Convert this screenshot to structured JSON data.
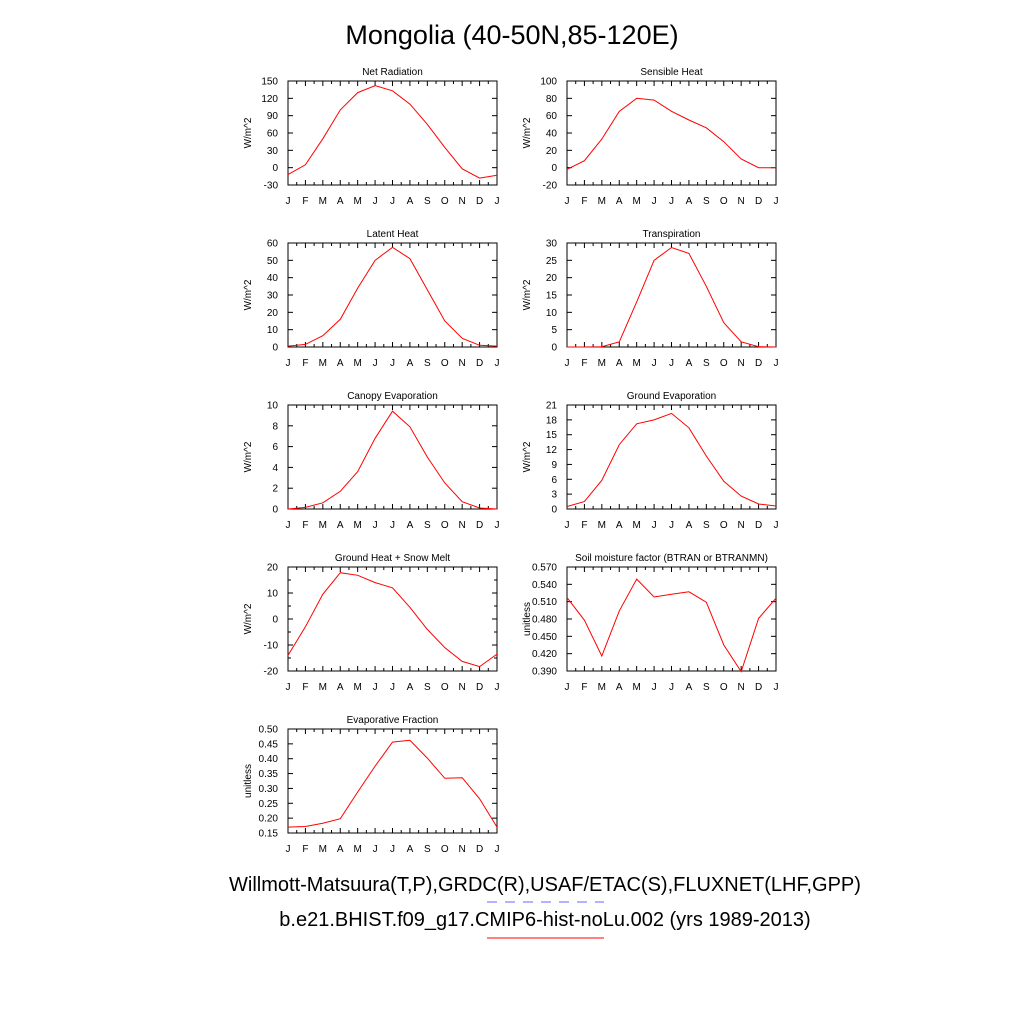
{
  "page_title": "Mongolia (40-50N,85-120E)",
  "legend": {
    "line1": "Willmott-Matsuura(T,P),GRDC(R),USAF/ETAC(S),FLUXNET(LHF,GPP)",
    "line2": "b.e21.BHIST.f09_g17.CMIP6-hist-noLu.002 (yrs 1989-2013)",
    "line1_color": "#6666ff",
    "line2_color": "#ff0000"
  },
  "colors": {
    "series": "#ff0000",
    "axis": "#000000",
    "background": "#ffffff"
  },
  "chart_data": [
    {
      "type": "line",
      "title": "Net Radiation",
      "ylabel": "W/m^2",
      "categories": [
        "J",
        "F",
        "M",
        "A",
        "M",
        "J",
        "J",
        "A",
        "S",
        "O",
        "N",
        "D",
        "J"
      ],
      "values": [
        -12,
        5,
        50,
        100,
        130,
        142,
        133,
        110,
        75,
        35,
        -2,
        -18,
        -13
      ],
      "ylim": [
        -30,
        150
      ],
      "yticks": [
        -30,
        0,
        30,
        60,
        90,
        120,
        150
      ],
      "ytick_labels": [
        "-30",
        "0",
        "30",
        "60",
        "90",
        "120",
        "150"
      ],
      "grid": false
    },
    {
      "type": "line",
      "title": "Sensible Heat",
      "ylabel": "W/m^2",
      "categories": [
        "J",
        "F",
        "M",
        "A",
        "M",
        "J",
        "J",
        "A",
        "S",
        "O",
        "N",
        "D",
        "J"
      ],
      "values": [
        -2,
        8,
        33,
        65,
        80,
        78,
        65,
        55,
        46,
        30,
        10,
        0,
        0
      ],
      "ylim": [
        -20,
        100
      ],
      "yticks": [
        -20,
        0,
        20,
        40,
        60,
        80,
        100
      ],
      "ytick_labels": [
        "-20",
        "0",
        "20",
        "40",
        "60",
        "80",
        "100"
      ],
      "grid": false
    },
    {
      "type": "line",
      "title": "Latent Heat",
      "ylabel": "W/m^2",
      "categories": [
        "J",
        "F",
        "M",
        "A",
        "M",
        "J",
        "J",
        "A",
        "S",
        "O",
        "N",
        "D",
        "J"
      ],
      "values": [
        0.5,
        1.5,
        6.5,
        16,
        34,
        50,
        57.5,
        51,
        33,
        15,
        5,
        1,
        0.5
      ],
      "ylim": [
        0,
        60
      ],
      "yticks": [
        0,
        10,
        20,
        30,
        40,
        50,
        60
      ],
      "ytick_labels": [
        "0",
        "10",
        "20",
        "30",
        "40",
        "50",
        "60"
      ],
      "grid": false
    },
    {
      "type": "line",
      "title": "Transpiration",
      "ylabel": "W/m^2",
      "categories": [
        "J",
        "F",
        "M",
        "A",
        "M",
        "J",
        "J",
        "A",
        "S",
        "O",
        "N",
        "D",
        "J"
      ],
      "values": [
        0,
        0,
        0.1,
        1.5,
        13,
        25,
        28.7,
        27,
        17.5,
        7,
        1.5,
        0.1,
        0
      ],
      "ylim": [
        0,
        30
      ],
      "yticks": [
        0,
        5,
        10,
        15,
        20,
        25,
        30
      ],
      "ytick_labels": [
        "0",
        "5",
        "10",
        "15",
        "20",
        "25",
        "30"
      ],
      "grid": false
    },
    {
      "type": "line",
      "title": "Canopy Evaporation",
      "ylabel": "W/m^2",
      "categories": [
        "J",
        "F",
        "M",
        "A",
        "M",
        "J",
        "J",
        "A",
        "S",
        "O",
        "N",
        "D",
        "J"
      ],
      "values": [
        0,
        0.15,
        0.6,
        1.7,
        3.6,
        6.8,
        9.4,
        7.9,
        5.0,
        2.5,
        0.7,
        0.1,
        0
      ],
      "ylim": [
        0,
        10
      ],
      "yticks": [
        0,
        2,
        4,
        6,
        8,
        10
      ],
      "ytick_labels": [
        "0",
        "2",
        "4",
        "6",
        "8",
        "10"
      ],
      "grid": false
    },
    {
      "type": "line",
      "title": "Ground Evaporation",
      "ylabel": "W/m^2",
      "categories": [
        "J",
        "F",
        "M",
        "A",
        "M",
        "J",
        "J",
        "A",
        "S",
        "O",
        "N",
        "D",
        "J"
      ],
      "values": [
        0.5,
        1.5,
        5.8,
        13,
        17.2,
        18,
        19.3,
        16.4,
        10.7,
        5.6,
        2.6,
        1,
        0.6
      ],
      "ylim": [
        0,
        21
      ],
      "yticks": [
        0,
        3,
        6,
        9,
        12,
        15,
        18,
        21
      ],
      "ytick_labels": [
        "0",
        "3",
        "6",
        "9",
        "12",
        "15",
        "18",
        "21"
      ],
      "grid": false
    },
    {
      "type": "line",
      "title": "Ground Heat + Snow Melt",
      "ylabel": "W/m^2",
      "categories": [
        "J",
        "F",
        "M",
        "A",
        "M",
        "J",
        "J",
        "A",
        "S",
        "O",
        "N",
        "D",
        "J"
      ],
      "values": [
        -14,
        -3,
        9.5,
        17.8,
        16.8,
        14,
        12,
        4.5,
        -4,
        -11,
        -16.3,
        -18.3,
        -13.5
      ],
      "ylim": [
        -20,
        20
      ],
      "yticks": [
        -20,
        -10,
        0,
        10,
        20
      ],
      "ytick_labels": [
        "-20",
        "-10",
        "0",
        "10",
        "20"
      ],
      "minor_yticks": [
        -15,
        -5,
        5,
        15
      ],
      "grid": false
    },
    {
      "type": "line",
      "title": "Soil moisture factor (BTRAN or BTRANMN)",
      "ylabel": "unitless",
      "categories": [
        "J",
        "F",
        "M",
        "A",
        "M",
        "J",
        "J",
        "A",
        "S",
        "O",
        "N",
        "D",
        "J"
      ],
      "values": [
        0.517,
        0.478,
        0.416,
        0.494,
        0.549,
        0.518,
        0.523,
        0.527,
        0.509,
        0.435,
        0.389,
        0.481,
        0.516
      ],
      "ylim": [
        0.39,
        0.57
      ],
      "yticks": [
        0.39,
        0.42,
        0.45,
        0.48,
        0.51,
        0.54,
        0.57
      ],
      "ytick_labels": [
        "0.390",
        "0.420",
        "0.450",
        "0.480",
        "0.510",
        "0.540",
        "0.570"
      ],
      "grid": false
    },
    {
      "type": "line",
      "title": "Evaporative Fraction",
      "ylabel": "unitless",
      "categories": [
        "J",
        "F",
        "M",
        "A",
        "M",
        "J",
        "J",
        "A",
        "S",
        "O",
        "N",
        "D",
        "J"
      ],
      "values": [
        0.17,
        0.172,
        0.183,
        0.198,
        0.288,
        0.375,
        0.456,
        0.462,
        0.402,
        0.334,
        0.336,
        0.265,
        0.17
      ],
      "ylim": [
        0.15,
        0.5
      ],
      "yticks": [
        0.15,
        0.2,
        0.25,
        0.3,
        0.35,
        0.4,
        0.45,
        0.5
      ],
      "ytick_labels": [
        "0.15",
        "0.20",
        "0.25",
        "0.30",
        "0.35",
        "0.40",
        "0.45",
        "0.50"
      ],
      "grid": false
    }
  ]
}
